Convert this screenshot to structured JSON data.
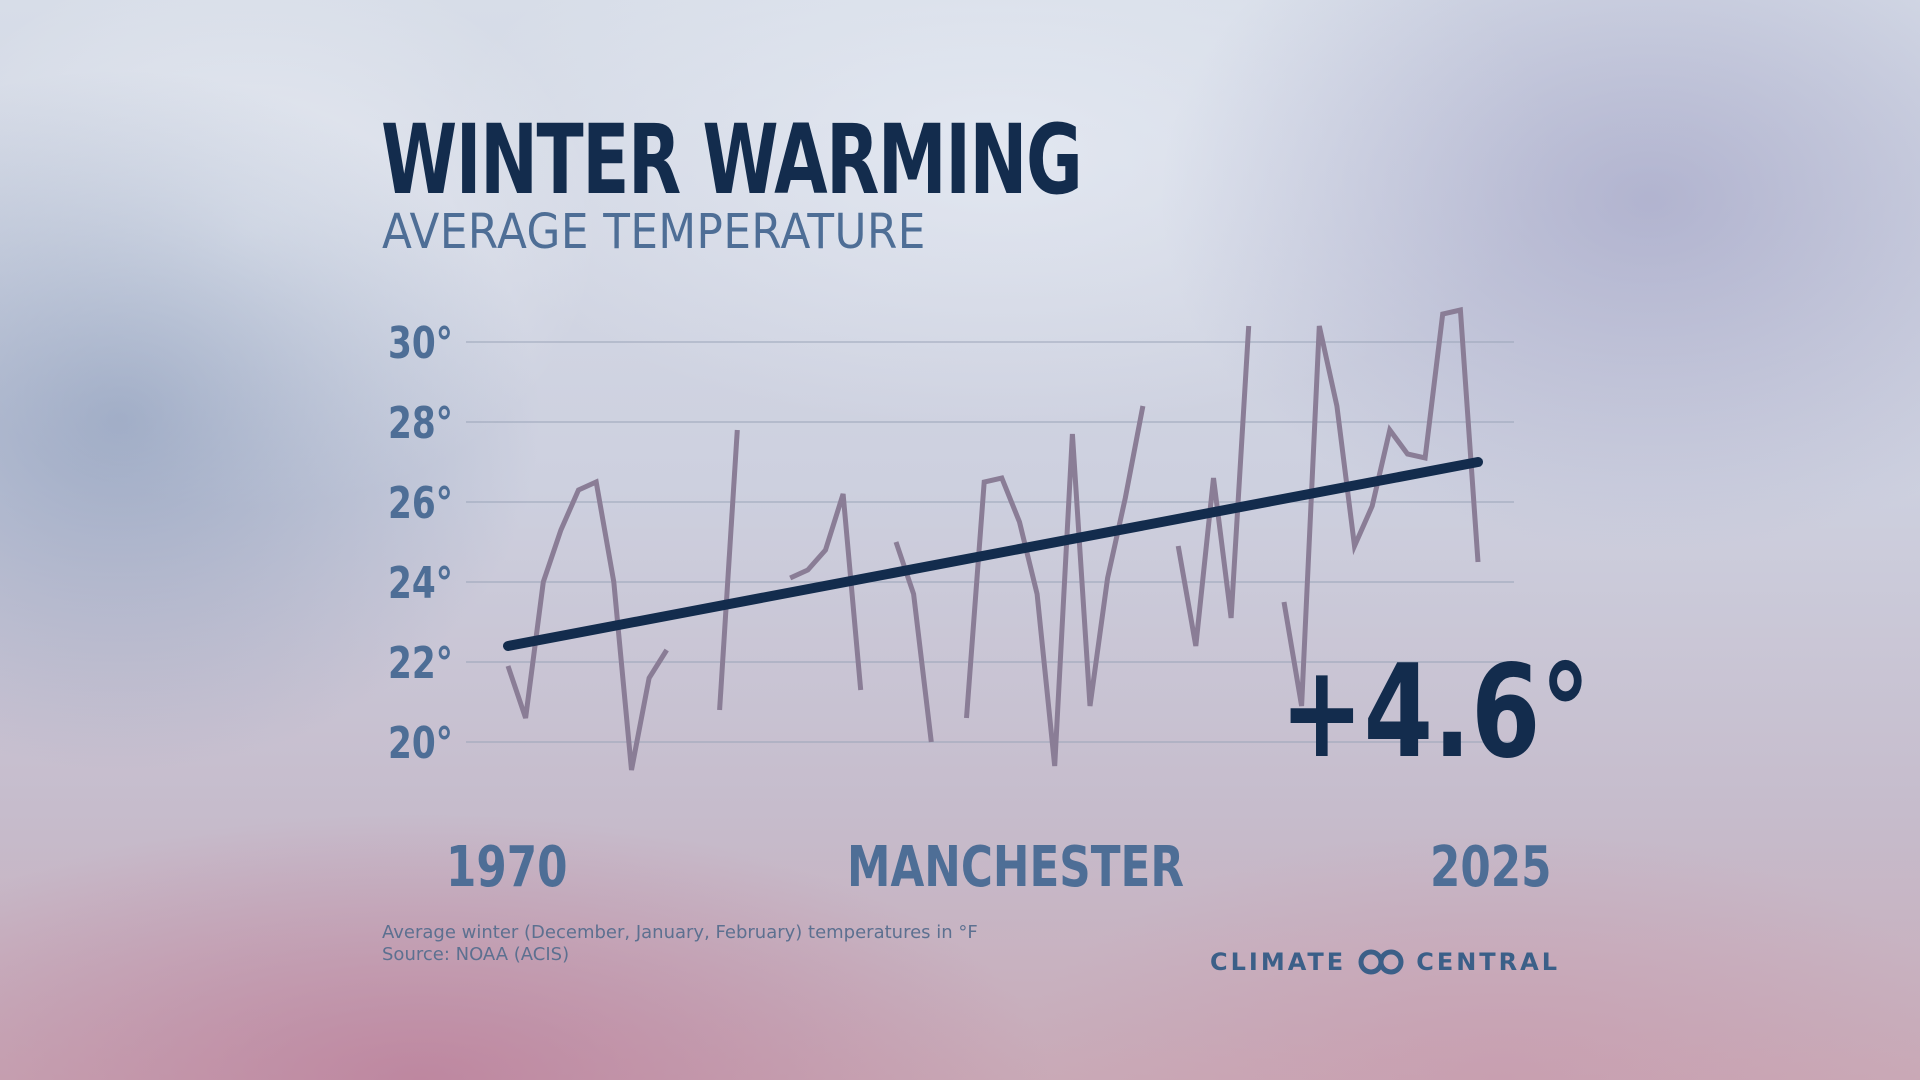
{
  "header": {
    "title": "WINTER WARMING",
    "subtitle": "AVERAGE TEMPERATURE"
  },
  "highlight": {
    "change": "+4.6°"
  },
  "footer": {
    "note": "Average winter (December, January, February) temperatures in °F",
    "source": "Source: NOAA (ACIS)",
    "brand_left": "CLIMATE",
    "brand_right": "CENTRAL"
  },
  "colors": {
    "title": "#132c4d",
    "accent": "#4e6e96",
    "series": "#8a7d96",
    "trend": "#132c4d",
    "grid": "#9aa4b8"
  },
  "chart_data": {
    "type": "line",
    "title": "WINTER WARMING",
    "subtitle": "AVERAGE TEMPERATURE",
    "xlabel": "MANCHESTER",
    "x_tick_labels": [
      "1970",
      "2025"
    ],
    "xlim": [
      1970,
      2025
    ],
    "ylim": [
      19,
      31
    ],
    "y_ticks": [
      20,
      22,
      24,
      26,
      28,
      30
    ],
    "y_tick_labels": [
      "20°",
      "22°",
      "24°",
      "26°",
      "28°",
      "30°"
    ],
    "grid": true,
    "x": [
      1970,
      1971,
      1972,
      1973,
      1974,
      1975,
      1976,
      1977,
      1978,
      1979,
      1980,
      1981,
      1982,
      1983,
      1984,
      1985,
      1986,
      1987,
      1988,
      1989,
      1990,
      1991,
      1992,
      1993,
      1994,
      1995,
      1996,
      1997,
      1998,
      1999,
      2000,
      2001,
      2002,
      2003,
      2004,
      2005,
      2006,
      2007,
      2008,
      2009,
      2010,
      2011,
      2012,
      2013,
      2014,
      2015,
      2016,
      2017,
      2018,
      2019,
      2020,
      2021,
      2022,
      2023,
      2024,
      2025
    ],
    "series": [
      {
        "values": [
          21.9,
          20.6,
          24.0,
          25.3,
          26.3,
          26.5,
          24.0,
          19.3,
          21.6,
          22.3,
          null,
          null,
          20.8,
          27.8,
          null,
          null,
          24.1,
          24.3,
          24.8,
          26.2,
          21.3,
          null,
          25.0,
          23.7,
          20.0,
          null,
          20.6,
          26.5,
          26.6,
          25.5,
          23.7,
          19.4,
          27.7,
          20.9,
          24.1,
          26.1,
          28.4,
          null,
          24.9,
          22.4,
          26.6,
          23.1,
          30.4,
          null,
          23.5,
          20.9,
          30.4,
          28.4,
          24.9,
          25.9,
          27.8,
          27.2,
          27.1,
          30.7,
          30.8,
          24.5
        ]
      }
    ],
    "trend": {
      "start": {
        "x": 1970,
        "y": 22.4
      },
      "end": {
        "x": 2025,
        "y": 27.0
      },
      "change": 4.6
    }
  }
}
